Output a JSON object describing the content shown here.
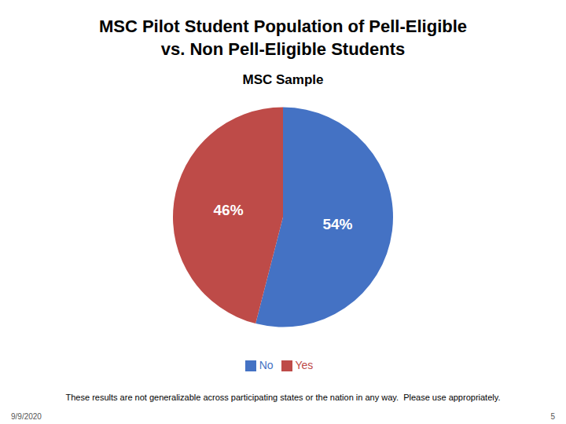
{
  "chart_data": {
    "type": "pie",
    "title": "MSC Pilot Student Population of Pell-Eligible\nvs. Non Pell-Eligible Students",
    "subtitle": "MSC Sample",
    "categories": [
      "No",
      "Yes"
    ],
    "values": [
      54,
      46
    ],
    "value_labels": [
      "54%",
      "46%"
    ],
    "colors": [
      "#4472C4",
      "#BE4B48"
    ],
    "data_labels": true,
    "legend": "bottom",
    "annotations": [
      "These results are not generalizable across participating states or the nation in any way.  Please use appropriately.",
      "9/9/2020",
      "5"
    ]
  }
}
